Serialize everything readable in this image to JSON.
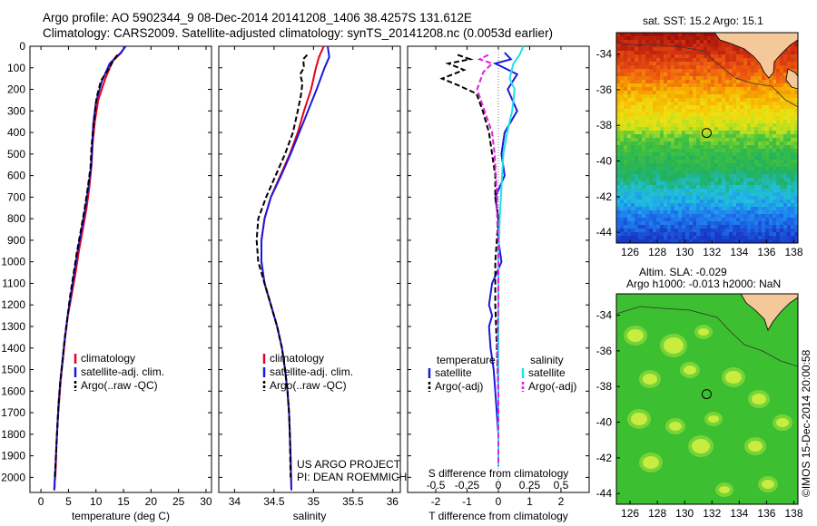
{
  "header": {
    "line1": "Argo profile: AO 5902344_9 08-Dec-2014 20141208_1406 38.4257S 131.612E",
    "line2": "Climatology: CARS2009. Satellite-adjusted climatology: synTS_20141208.nc (0.0053d earlier)"
  },
  "sst_title": "sat. SST: 15.2  Argo: 15.1",
  "sla_title1": "Altim. SLA: -0.029",
  "sla_title2": "Argo h1000: -0.013 h2000: NaN",
  "credit": "©IMOS 15-Dec-2014 20:00:58",
  "project": {
    "line1": "US ARGO PROJECT",
    "line2": "PI: DEAN ROEMMICH"
  },
  "colors": {
    "climatology": "#e8001c",
    "satellite": "#1a1adc",
    "argo": "#000000",
    "sal_satellite": "#22e0e8",
    "sal_argo": "#e020e0",
    "land": "#f5c89a"
  },
  "chart_data": [
    {
      "type": "line",
      "title": "",
      "xlabel": "temperature (deg C)",
      "ylabel": "",
      "xlim": [
        -2,
        31
      ],
      "ylim": [
        2070,
        0
      ],
      "xticks": [
        "0",
        "5",
        "10",
        "15",
        "20",
        "25",
        "30"
      ],
      "yticks": [
        "0",
        "100",
        "200",
        "300",
        "400",
        "500",
        "600",
        "700",
        "800",
        "900",
        "1000",
        "1100",
        "1200",
        "1300",
        "1400",
        "1500",
        "1600",
        "1700",
        "1800",
        "1900",
        "2000"
      ],
      "legend": [
        "climatology",
        "satellite-adj. clim.",
        "Argo(..raw -QC)"
      ],
      "series": [
        {
          "name": "climatology",
          "style": "solid",
          "x": [
            15.3,
            14.6,
            13.0,
            11.7,
            10.4,
            9.8,
            9.4,
            9.2,
            8.8,
            8.3,
            7.6,
            6.9,
            6.3,
            5.6,
            4.9,
            4.4,
            4.0,
            3.6,
            3.3,
            3.0,
            2.8,
            2.7,
            2.6,
            2.5,
            2.5,
            2.4
          ],
          "y": [
            0,
            30,
            70,
            150,
            250,
            350,
            450,
            550,
            650,
            750,
            850,
            950,
            1050,
            1150,
            1250,
            1350,
            1450,
            1550,
            1650,
            1750,
            1850,
            1950,
            2000,
            2020,
            2040,
            2060
          ]
        },
        {
          "name": "satellite-adj. clim.",
          "style": "solid",
          "x": [
            15.4,
            14.5,
            12.5,
            11.1,
            10.0,
            9.5,
            9.3,
            9.1,
            8.6,
            8.0,
            7.3,
            6.6,
            6.0,
            5.4,
            4.8,
            4.3,
            3.9,
            3.5,
            3.2,
            3.0,
            2.8,
            2.6,
            2.5,
            2.4
          ],
          "y": [
            0,
            30,
            80,
            160,
            260,
            360,
            460,
            560,
            660,
            760,
            860,
            960,
            1060,
            1160,
            1260,
            1360,
            1460,
            1560,
            1660,
            1760,
            1860,
            1960,
            2010,
            2060
          ]
        },
        {
          "name": "Argo(..raw -QC)",
          "style": "dashed",
          "x": [
            13.9,
            13.3,
            12.2,
            10.9,
            10.1,
            9.6,
            9.2,
            9.0,
            8.5,
            7.9,
            7.2,
            6.5,
            5.9,
            5.3,
            4.8,
            4.3,
            3.9,
            3.5,
            3.2,
            3.0,
            2.8,
            2.6,
            2.5
          ],
          "y": [
            40,
            60,
            110,
            160,
            240,
            360,
            460,
            560,
            660,
            760,
            860,
            960,
            1060,
            1160,
            1260,
            1360,
            1460,
            1560,
            1660,
            1760,
            1860,
            1960,
            2000
          ]
        }
      ]
    },
    {
      "type": "line",
      "title": "",
      "xlabel": "salinity",
      "ylabel": "",
      "xlim": [
        33.8,
        36.1
      ],
      "ylim": [
        2070,
        0
      ],
      "xticks": [
        "34",
        "34.5",
        "35",
        "35.5",
        "36"
      ],
      "legend": [
        "climatology",
        "satellite-adj. clim.",
        "Argo(..raw -QC)"
      ],
      "series": [
        {
          "name": "climatology",
          "style": "solid",
          "x": [
            35.13,
            35.07,
            35.03,
            34.97,
            34.88,
            34.8,
            34.7,
            34.58,
            34.46,
            34.38,
            34.34,
            34.34,
            34.38,
            34.46,
            34.54,
            34.6,
            34.64,
            34.67,
            34.69,
            34.7,
            34.71,
            34.72
          ],
          "y": [
            0,
            50,
            100,
            200,
            300,
            400,
            500,
            600,
            700,
            800,
            900,
            1000,
            1100,
            1200,
            1300,
            1400,
            1500,
            1600,
            1700,
            1800,
            1900,
            2060
          ]
        },
        {
          "name": "satellite-adj. clim.",
          "style": "solid",
          "x": [
            35.18,
            35.2,
            35.14,
            35.04,
            34.93,
            34.82,
            34.71,
            34.59,
            34.46,
            34.38,
            34.34,
            34.34,
            34.38,
            34.46,
            34.54,
            34.6,
            34.64,
            34.67,
            34.69,
            34.7,
            34.71,
            34.72
          ],
          "y": [
            0,
            50,
            100,
            200,
            300,
            400,
            500,
            600,
            700,
            800,
            900,
            1000,
            1100,
            1200,
            1300,
            1400,
            1500,
            1600,
            1700,
            1800,
            1900,
            2060
          ]
        },
        {
          "name": "Argo(..raw -QC)",
          "style": "dashed",
          "x": [
            34.92,
            34.87,
            34.88,
            34.83,
            34.86,
            34.84,
            34.8,
            34.74,
            34.64,
            34.52,
            34.4,
            34.3,
            34.28,
            34.3,
            34.38,
            34.46,
            34.54,
            34.6,
            34.64,
            34.67,
            34.69,
            34.7,
            34.71
          ],
          "y": [
            40,
            60,
            100,
            130,
            170,
            230,
            300,
            400,
            500,
            600,
            700,
            800,
            900,
            1000,
            1100,
            1200,
            1300,
            1400,
            1500,
            1600,
            1700,
            1800,
            2000
          ]
        }
      ]
    },
    {
      "type": "line",
      "title": "",
      "xlabel": "T difference from climatology",
      "xlabel_top": "S difference from climatology",
      "ylabel": "",
      "xlim": [
        -2.9,
        2.9
      ],
      "ylim": [
        2070,
        0
      ],
      "xticks": [
        "-2",
        "-1",
        "0",
        "1",
        "2"
      ],
      "xticks_S": [
        "-0.5",
        "-0.25",
        "0",
        "0.25",
        "0.5"
      ],
      "xlim_S": [
        -0.725,
        0.725
      ],
      "legend": [
        "temperature",
        "satellite",
        "Argo(-adj)",
        "salinity",
        "satellite",
        "Argo(-adj)"
      ],
      "series": [
        {
          "name": "temperature satellite",
          "style": "solid",
          "variable": "T",
          "x": [
            0.2,
            0.4,
            -0.1,
            0.6,
            0.3,
            0.6,
            0.2,
            0.1,
            0.2,
            -0.1,
            0.0,
            0.0,
            0.1,
            -0.05,
            -0.2,
            -0.3,
            -0.2,
            -0.3,
            -0.25,
            -0.15,
            -0.1,
            -0.05,
            0.0,
            0.0
          ],
          "y": [
            30,
            60,
            80,
            130,
            200,
            300,
            400,
            500,
            600,
            700,
            800,
            900,
            1000,
            1050,
            1100,
            1200,
            1250,
            1300,
            1400,
            1500,
            1600,
            1700,
            1800,
            1950
          ]
        },
        {
          "name": "temperature Argo(-adj)",
          "style": "dashed",
          "variable": "T",
          "x": [
            -1.3,
            -0.9,
            -1.6,
            -1.1,
            -1.8,
            -1.3,
            -0.7,
            -0.5,
            -0.3,
            -0.2,
            -0.1,
            -0.1,
            0.0,
            -0.05,
            -0.1,
            -0.1,
            -0.05,
            0.0,
            0.0,
            0.0
          ],
          "y": [
            40,
            60,
            80,
            110,
            150,
            180,
            220,
            300,
            400,
            500,
            600,
            700,
            800,
            900,
            1000,
            1200,
            1400,
            1600,
            1800,
            1950
          ]
        },
        {
          "name": "salinity satellite",
          "style": "solid",
          "variable": "S",
          "x": [
            0.2,
            0.17,
            0.12,
            0.09,
            0.13,
            0.11,
            0.07,
            0.04,
            0.03,
            0.02,
            0.01,
            0.0,
            0.0,
            0.0,
            0.0,
            0.0,
            0.0
          ],
          "y": [
            0,
            40,
            80,
            150,
            200,
            300,
            400,
            500,
            600,
            700,
            800,
            1000,
            1200,
            1400,
            1600,
            1800,
            1950
          ]
        },
        {
          "name": "salinity Argo(-adj)",
          "style": "dashed",
          "variable": "S",
          "x": [
            -0.08,
            -0.15,
            -0.05,
            -0.12,
            -0.17,
            -0.11,
            -0.05,
            -0.03,
            -0.02,
            -0.01,
            -0.01,
            0.0,
            0.0,
            0.0,
            -0.01,
            0.0,
            0.0,
            0.0
          ],
          "y": [
            40,
            60,
            80,
            120,
            200,
            300,
            400,
            500,
            600,
            700,
            800,
            900,
            1000,
            1200,
            1400,
            1600,
            1800,
            1950
          ]
        }
      ]
    },
    {
      "type": "heatmap",
      "title": "sat. SST: 15.2  Argo: 15.1",
      "xticks": [
        "126",
        "128",
        "130",
        "132",
        "134",
        "136",
        "138"
      ],
      "yticks": [
        "-34",
        "-36",
        "-38",
        "-40",
        "-42",
        "-44"
      ],
      "xlim": [
        125,
        138.3
      ],
      "ylim": [
        -44.6,
        -32.8
      ],
      "marker": {
        "lon": 131.612,
        "lat": -38.4257
      }
    },
    {
      "type": "heatmap",
      "title": "Altim. SLA: -0.029",
      "xticks": [
        "126",
        "128",
        "130",
        "132",
        "134",
        "136",
        "138"
      ],
      "yticks": [
        "-34",
        "-36",
        "-38",
        "-40",
        "-42",
        "-44"
      ],
      "xlim": [
        125,
        138.3
      ],
      "ylim": [
        -44.6,
        -32.8
      ],
      "marker": {
        "lon": 131.612,
        "lat": -38.4257
      }
    }
  ]
}
